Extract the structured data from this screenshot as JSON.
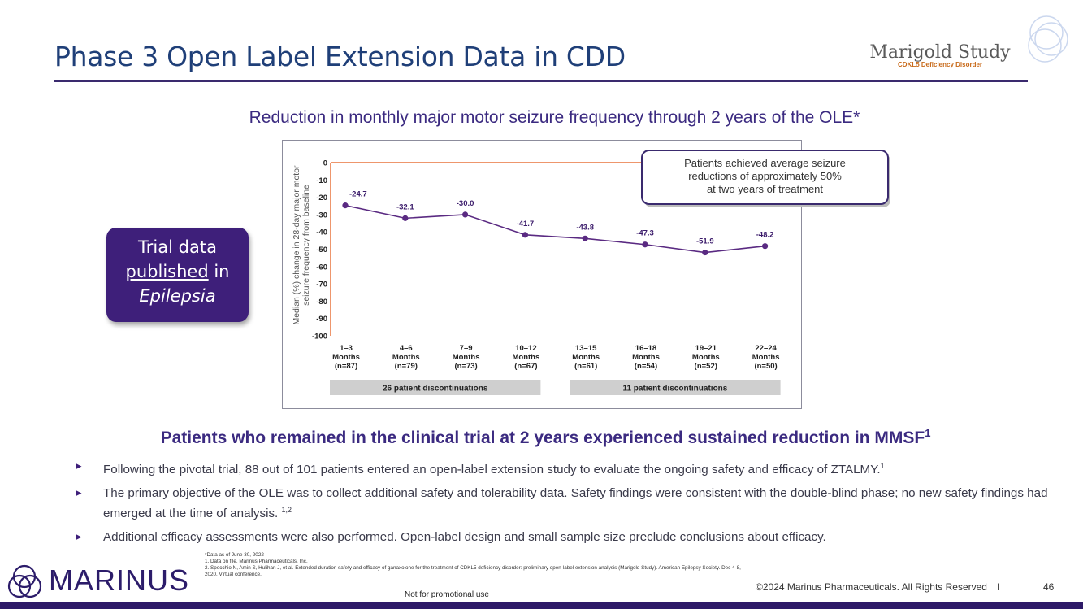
{
  "header": {
    "title": "Phase 3 Open Label Extension Data in CDD",
    "logo_name": "Marigold Study",
    "logo_sub": "CDKL5 Deficiency Disorder"
  },
  "subtitle": "Reduction in monthly major motor seizure frequency through 2 years of the OLE*",
  "badge": {
    "line1": "Trial data",
    "line2_link": "published",
    "line2_rest": " in",
    "line3": "Epilepsia"
  },
  "chart_data": {
    "type": "line",
    "ylabel": "Median (%) change in 28-day major motor seizure frequency from baseline",
    "ylim": [
      -100,
      0
    ],
    "yticks": [
      0,
      -10,
      -20,
      -30,
      -40,
      -50,
      -60,
      -70,
      -80,
      -90,
      -100
    ],
    "categories": [
      {
        "period": "1–3",
        "unit": "Months",
        "n": "(n=87)"
      },
      {
        "period": "4–6",
        "unit": "Months",
        "n": "(n=79)"
      },
      {
        "period": "7–9",
        "unit": "Months",
        "n": "(n=73)"
      },
      {
        "period": "10–12",
        "unit": "Months",
        "n": "(n=67)"
      },
      {
        "period": "13–15",
        "unit": "Months",
        "n": "(n=61)"
      },
      {
        "period": "16–18",
        "unit": "Months",
        "n": "(n=54)"
      },
      {
        "period": "19–21",
        "unit": "Months",
        "n": "(n=52)"
      },
      {
        "period": "22–24",
        "unit": "Months",
        "n": "(n=50)"
      }
    ],
    "values": [
      -24.7,
      -32.1,
      -30.0,
      -41.7,
      -43.8,
      -47.3,
      -51.9,
      -48.2
    ],
    "value_labels": [
      "-24.7",
      "-32.1",
      "-30.0",
      "-41.7",
      "-43.8",
      "-47.3",
      "-51.9",
      "-48.2"
    ],
    "discontinuations": [
      {
        "label": "26 patient discontinuations",
        "from": 0,
        "to": 3
      },
      {
        "label": "11 patient discontinuations",
        "from": 4,
        "to": 7
      }
    ],
    "callout": "Patients achieved average seizure reductions of approximately 50% at two years of treatment",
    "colors": {
      "line": "#5a2a82",
      "axis": "#e8743b",
      "bar": "#cfcfcf"
    }
  },
  "headline": "Patients who remained in the clinical trial at 2 years experienced sustained reduction in MMSF",
  "headline_sup": "1",
  "bullets": [
    {
      "text": "Following the pivotal trial, 88 out of 101 patients entered an open-label extension study to evaluate the ongoing safety and efficacy of ZTALMY.",
      "sup": "1"
    },
    {
      "text": "The primary objective of the OLE was to collect additional safety and tolerability data. Safety findings were consistent with the double-blind phase; no new safety findings had emerged at the time of analysis. ",
      "sup": "1,2"
    },
    {
      "text": "Additional efficacy assessments were also performed. Open-label design and small sample size preclude conclusions about efficacy.",
      "sup": ""
    }
  ],
  "footer": {
    "company": "MARINUS",
    "footnote_0": "*Data as of June 30, 2022",
    "footnote_1": "1. Data on file. Marinus Pharmaceuticals, Inc.",
    "footnote_2": "2. Specchio N, Amin S, Hulihan J, et al. Extended duration safety and efficacy of ganaxolone for the treatment of CDKL5 deficiency disorder: preliminary open-label extension analysis (Marigold Study). American Epilepsy Society. Dec 4-8, 2020. Virtual conference.",
    "not_promo": "Not for promotional use",
    "copyright": "©2024 Marinus Pharmaceuticals. All Rights Reserved",
    "separator": "I",
    "page": "46"
  }
}
